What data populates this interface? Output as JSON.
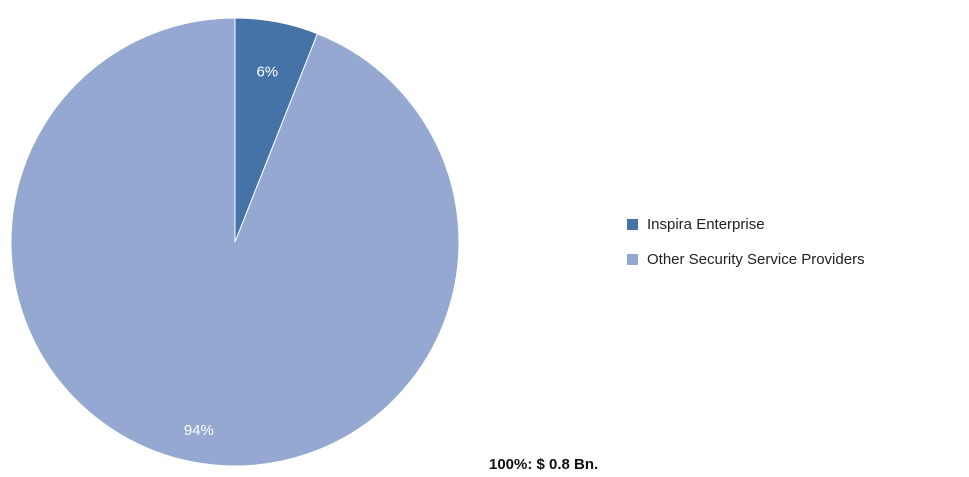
{
  "chart_data": {
    "type": "pie",
    "categories": [
      "Inspira Enterprise",
      "Other Security Service Providers"
    ],
    "values": [
      6,
      94
    ],
    "data_labels": [
      "6%",
      "94%"
    ],
    "colors": [
      "#4572A7",
      "#94A8D2"
    ],
    "legend_position": "right",
    "total_note": "100%: $ 0.8 Bn."
  }
}
